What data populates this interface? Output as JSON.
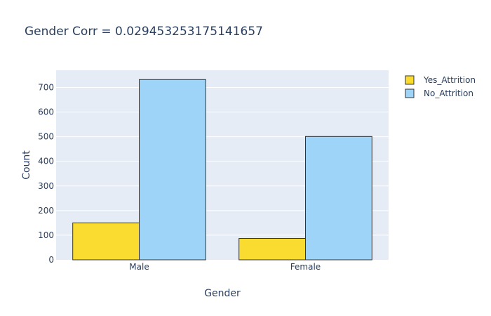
{
  "chart_data": {
    "type": "bar",
    "title": "Gender Corr = 0.029453253175141657",
    "xlabel": "Gender",
    "ylabel": "Count",
    "categories": [
      "Male",
      "Female"
    ],
    "series": [
      {
        "name": "Yes_Attrition",
        "values": [
          150,
          87
        ],
        "color": "#f9dc2f"
      },
      {
        "name": "No_Attrition",
        "values": [
          732,
          501
        ],
        "color": "#9dd4f8"
      }
    ],
    "ylim": [
      0,
      770
    ],
    "yticks": [
      0,
      100,
      200,
      300,
      400,
      500,
      600,
      700
    ],
    "grid": true,
    "legend_position": "top-right",
    "plot_background": "#e5ecf6",
    "bar_edge_color": "#333333"
  }
}
